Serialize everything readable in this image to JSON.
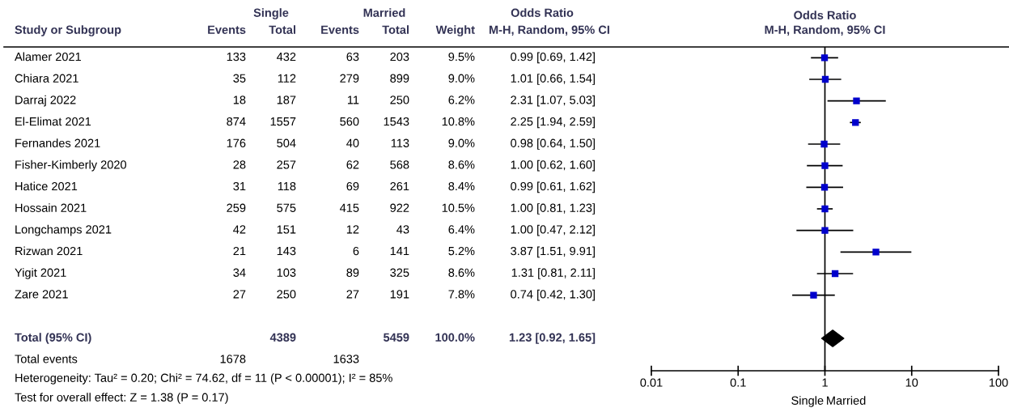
{
  "chart_data": [
    {
      "type": "other",
      "categories": [
        "Study or Subgroup",
        "Events",
        "Total",
        "Events",
        "Total",
        "Weight",
        "M-H, Random, 95% CI"
      ],
      "y_categories": [
        "Alamer 2021",
        "Chiara 2021",
        "Darraj 2022",
        "El-Elimat 2021",
        "Fernandes 2021",
        "Fisher-Kimberly 2020",
        "Hatice 2021",
        "Hossain 2021",
        "Longchamps 2021",
        "Rizwan 2021",
        "Yigit 2021",
        "Zare 2021",
        null,
        "Total (95% CI)",
        "Total events"
      ],
      "cell_labels": [
        [
          "133",
          "432",
          "63",
          "203",
          "9.5%",
          "0.99 [0.69, 1.42]"
        ],
        [
          "35",
          "112",
          "279",
          "899",
          "9.0%",
          "1.01 [0.66, 1.54]"
        ],
        [
          "18",
          "187",
          "11",
          "250",
          "6.2%",
          "2.31 [1.07, 5.03]"
        ],
        [
          "874",
          "1557",
          "560",
          "1543",
          "10.8%",
          "2.25 [1.94, 2.59]"
        ],
        [
          "176",
          "504",
          "40",
          "113",
          "9.0%",
          "0.98 [0.64, 1.50]"
        ],
        [
          "28",
          "257",
          "62",
          "568",
          "8.6%",
          "1.00 [0.62, 1.60]"
        ],
        [
          "31",
          "118",
          "69",
          "261",
          "8.4%",
          "0.99 [0.61, 1.62]"
        ],
        [
          "259",
          "575",
          "415",
          "922",
          "10.5%",
          "1.00 [0.81, 1.23]"
        ],
        [
          "42",
          "151",
          "12",
          "43",
          "6.4%",
          "1.00 [0.47, 2.12]"
        ],
        [
          "21",
          "143",
          "6",
          "141",
          "5.2%",
          "3.87 [1.51, 9.91]"
        ],
        [
          "34",
          "103",
          "89",
          "325",
          "8.6%",
          "1.31 [0.81, 2.11]"
        ],
        [
          "27",
          "250",
          "27",
          "191",
          "7.8%",
          "0.74 [0.42, 1.30]"
        ],
        [
          null,
          null,
          null,
          null,
          null,
          null
        ],
        [
          null,
          "4389",
          null,
          "5459",
          "100.0%",
          "1.23 [0.92, 1.65]"
        ],
        [
          "1678",
          null,
          "1633",
          null,
          null,
          null
        ]
      ],
      "annotations": [
        "Single",
        "Married",
        "Odds Ratio",
        "Heterogeneity: Tau² = 0.20; Chi² = 74.62, df = 11 (P < 0.00001); I² = 85%",
        "Test for overall effect: Z = 1.38 (P = 0.17)"
      ]
    },
    {
      "type": "scatter",
      "title": "Odds Ratio",
      "subtitle": "M-H, Random, 95% CI",
      "orientation": "horizontal",
      "categories": [
        null,
        null,
        null,
        null,
        null,
        null,
        null,
        null,
        null,
        null,
        null,
        null,
        null,
        null,
        null
      ],
      "series": [
        {
          "type": "scatter",
          "marker": "square",
          "color": "#0000cc",
          "values": [
            0.99,
            1.01,
            2.31,
            2.25,
            0.98,
            1.0,
            0.99,
            1.0,
            1.0,
            3.87,
            1.31,
            0.74,
            null,
            null,
            null
          ],
          "errors": [
            [
              0.69,
              1.42
            ],
            [
              0.66,
              1.54
            ],
            [
              1.07,
              5.03
            ],
            [
              1.94,
              2.59
            ],
            [
              0.64,
              1.5
            ],
            [
              0.62,
              1.6
            ],
            [
              0.61,
              1.62
            ],
            [
              0.81,
              1.23
            ],
            [
              0.47,
              2.12
            ],
            [
              1.51,
              9.91
            ],
            [
              0.81,
              2.11
            ],
            [
              0.42,
              1.3
            ],
            null,
            null,
            null
          ]
        },
        {
          "type": "scatter",
          "marker": "diamond",
          "color": "#000000",
          "values": [
            null,
            null,
            null,
            null,
            null,
            null,
            null,
            null,
            null,
            null,
            null,
            null,
            null,
            1.23,
            null
          ],
          "errors": [
            null,
            null,
            null,
            null,
            null,
            null,
            null,
            null,
            null,
            null,
            null,
            null,
            null,
            [
              0.92,
              1.65
            ],
            null
          ]
        }
      ],
      "log": "x",
      "xlim": [
        0.01,
        100
      ],
      "xticks": [
        0.01,
        0.1,
        1,
        10,
        100
      ],
      "ref_lines": [
        {
          "axis": "x",
          "value": 1
        }
      ],
      "annotations": [
        "Single",
        "Married"
      ],
      "tick_labels": "x",
      "grid": false,
      "legend": false
    }
  ]
}
